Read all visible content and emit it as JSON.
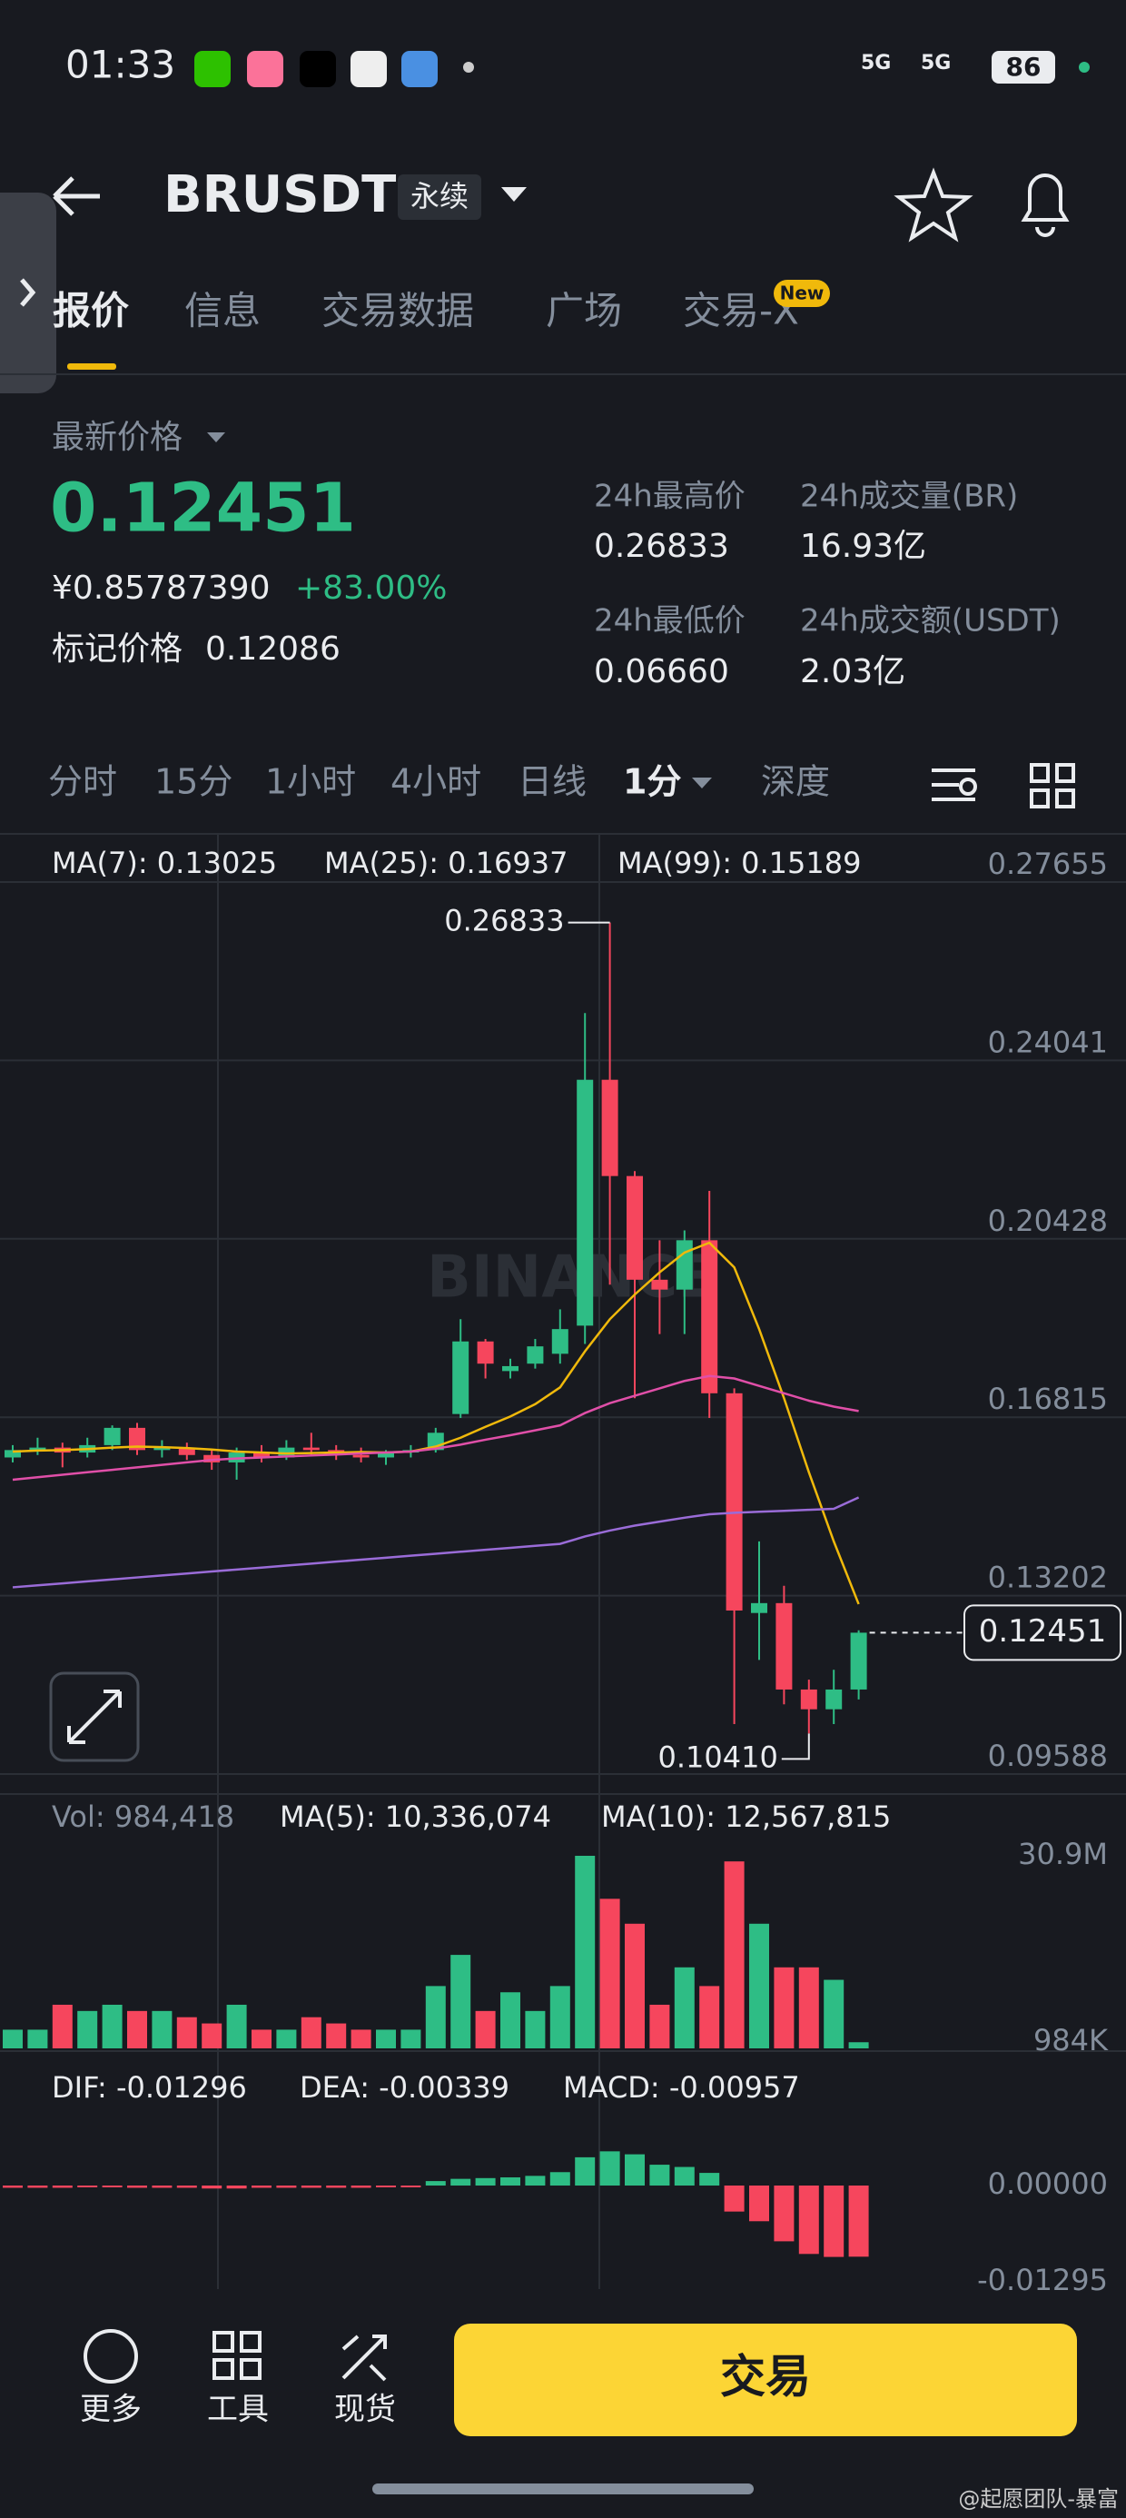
{
  "status_bar": {
    "time": "01:33",
    "network": "5G",
    "battery": "86"
  },
  "header": {
    "symbol": "BRUSDT",
    "contract": "永续"
  },
  "tabs": [
    "报价",
    "信息",
    "交易数据",
    "广场",
    "交易-X"
  ],
  "new_badge": "New",
  "price": {
    "label": "最新价格",
    "last": "0.12451",
    "cny": "¥0.85787390",
    "change": "+83.00%",
    "mark_label": "标记价格",
    "mark_value": "0.12086"
  },
  "stats": [
    {
      "label": "24h最高价",
      "value": "0.26833"
    },
    {
      "label": "24h成交量(BR)",
      "value": "16.93亿"
    },
    {
      "label": "24h最低价",
      "value": "0.06660"
    },
    {
      "label": "24h成交额(USDT)",
      "value": "2.03亿"
    }
  ],
  "timeframes": [
    "分时",
    "15分",
    "1小时",
    "4小时",
    "日线",
    "1分",
    "深度"
  ],
  "chart_watermark": "BINANCE",
  "chart_data": [
    {
      "type": "candlestick",
      "up_color": "#2ebd85",
      "down_color": "#f6465d",
      "open": [
        0.16,
        0.1615,
        0.162,
        0.161,
        0.1625,
        0.166,
        0.1615,
        0.162,
        0.1605,
        0.159,
        0.161,
        0.16,
        0.162,
        0.1615,
        0.1605,
        0.16,
        0.161,
        0.1615,
        0.1688,
        0.1835,
        0.1775,
        0.179,
        0.181,
        0.1867,
        0.2365,
        0.217,
        0.196,
        0.194,
        0.204,
        0.173,
        0.1285,
        0.1305,
        0.113,
        0.109,
        0.113
      ],
      "high": [
        0.1625,
        0.164,
        0.163,
        0.164,
        0.1665,
        0.167,
        0.1635,
        0.163,
        0.1615,
        0.162,
        0.1625,
        0.1635,
        0.165,
        0.1625,
        0.162,
        0.1615,
        0.1625,
        0.166,
        0.188,
        0.184,
        0.18,
        0.184,
        0.19,
        0.25,
        0.26833,
        0.218,
        0.204,
        0.206,
        0.214,
        0.174,
        0.143,
        0.134,
        0.115,
        0.117,
        0.125
      ],
      "low": [
        0.159,
        0.1605,
        0.158,
        0.16,
        0.1615,
        0.1605,
        0.16,
        0.1595,
        0.1575,
        0.1555,
        0.159,
        0.1595,
        0.1605,
        0.1595,
        0.159,
        0.1585,
        0.16,
        0.161,
        0.168,
        0.176,
        0.176,
        0.178,
        0.179,
        0.183,
        0.195,
        0.172,
        0.185,
        0.185,
        0.168,
        0.106,
        0.119,
        0.11,
        0.1041,
        0.106,
        0.111
      ],
      "close": [
        0.1615,
        0.162,
        0.161,
        0.1625,
        0.166,
        0.1615,
        0.162,
        0.1605,
        0.159,
        0.161,
        0.16,
        0.162,
        0.1615,
        0.1605,
        0.16,
        0.161,
        0.1615,
        0.165,
        0.1835,
        0.179,
        0.1785,
        0.1825,
        0.186,
        0.2365,
        0.217,
        0.196,
        0.194,
        0.204,
        0.173,
        0.129,
        0.1305,
        0.113,
        0.109,
        0.113,
        0.12451
      ],
      "series": [
        {
          "name": "MA(7): 0.13025",
          "color": "#f0b90b",
          "values": [
            0.1612,
            0.1614,
            0.1615,
            0.1617,
            0.162,
            0.1622,
            0.1621,
            0.1619,
            0.1616,
            0.1612,
            0.161,
            0.1608,
            0.1609,
            0.161,
            0.1611,
            0.161,
            0.1612,
            0.1622,
            0.164,
            0.1662,
            0.1683,
            0.1708,
            0.1742,
            0.1815,
            0.188,
            0.193,
            0.1975,
            0.2015,
            0.2035,
            0.1985,
            0.186,
            0.172,
            0.157,
            0.143,
            0.1303
          ]
        },
        {
          "name": "MA(25): 0.16937",
          "color": "#e04fa8",
          "values": [
            0.1555,
            0.156,
            0.1565,
            0.157,
            0.1575,
            0.158,
            0.1585,
            0.159,
            0.1595,
            0.1598,
            0.16,
            0.1602,
            0.1604,
            0.1606,
            0.1608,
            0.161,
            0.1612,
            0.1618,
            0.1626,
            0.1636,
            0.1645,
            0.1655,
            0.1665,
            0.169,
            0.171,
            0.1725,
            0.174,
            0.1755,
            0.1765,
            0.176,
            0.1745,
            0.173,
            0.1715,
            0.1703,
            0.1694
          ]
        },
        {
          "name": "MA(99): 0.15189",
          "color": "#9a6cd8",
          "values": [
            0.1337,
            0.1341,
            0.1345,
            0.1349,
            0.1353,
            0.1357,
            0.1361,
            0.1365,
            0.1369,
            0.1373,
            0.1377,
            0.1381,
            0.1385,
            0.1389,
            0.1393,
            0.1397,
            0.1401,
            0.1405,
            0.1409,
            0.1413,
            0.1417,
            0.1421,
            0.1425,
            0.144,
            0.1452,
            0.1462,
            0.147,
            0.1478,
            0.1485,
            0.1488,
            0.149,
            0.1492,
            0.1494,
            0.1496,
            0.1519
          ]
        }
      ],
      "ylim": [
        0.09588,
        0.27655
      ],
      "yticks": [
        0.27655,
        0.24041,
        0.20428,
        0.16815,
        0.13202,
        0.09588
      ],
      "high_label": 0.26833,
      "low_label": {
        "value": 0.1041,
        "label": "0.10410"
      },
      "last_price": 0.12451
    },
    {
      "type": "bar",
      "series": [
        {
          "name": "Vol: 984,418",
          "values": [
            3000000,
            3000000,
            7000000,
            6000000,
            7000000,
            6000000,
            6000000,
            5000000,
            4000000,
            7000000,
            3000000,
            3000000,
            5000000,
            4000000,
            3000000,
            3000000,
            3000000,
            10000000,
            15000000,
            6000000,
            9000000,
            6000000,
            10000000,
            30900000,
            24000000,
            20000000,
            7000000,
            13000000,
            10000000,
            30000000,
            20000000,
            13000000,
            13000000,
            11000000,
            984418
          ]
        }
      ],
      "legend": [
        "MA(5): 10,336,074",
        "MA(10): 12,567,815"
      ],
      "ylim": [
        0,
        30900000
      ],
      "yticks": [
        {
          "value": 30900000,
          "label": "30.9M"
        },
        {
          "value": 984000,
          "label": "984K"
        }
      ]
    },
    {
      "type": "bar",
      "values": [
        -0.0003,
        -0.0003,
        -0.0003,
        -0.0002,
        -0.0002,
        -0.0003,
        -0.0003,
        -0.0003,
        -0.0004,
        -0.0004,
        -0.0003,
        -0.0003,
        -0.0003,
        -0.0003,
        -0.0003,
        -0.0002,
        -0.0002,
        0.0006,
        0.0009,
        0.001,
        0.0011,
        0.0013,
        0.0018,
        0.0038,
        0.0046,
        0.0042,
        0.0028,
        0.0025,
        0.0017,
        -0.0035,
        -0.0048,
        -0.0075,
        -0.0092,
        -0.0096,
        -0.00957
      ],
      "legend": [
        "DIF: -0.01296",
        "DEA: -0.00339",
        "MACD: -0.00957"
      ],
      "ylim": [
        -0.01295,
        0.01625
      ],
      "yticks": [
        {
          "value": 0,
          "label": "0.00000"
        },
        -0.01295
      ]
    }
  ],
  "bottom_bar": {
    "items": [
      "更多",
      "工具",
      "现货"
    ],
    "trade": "交易"
  },
  "watermark": "@起愿团队-暴富"
}
